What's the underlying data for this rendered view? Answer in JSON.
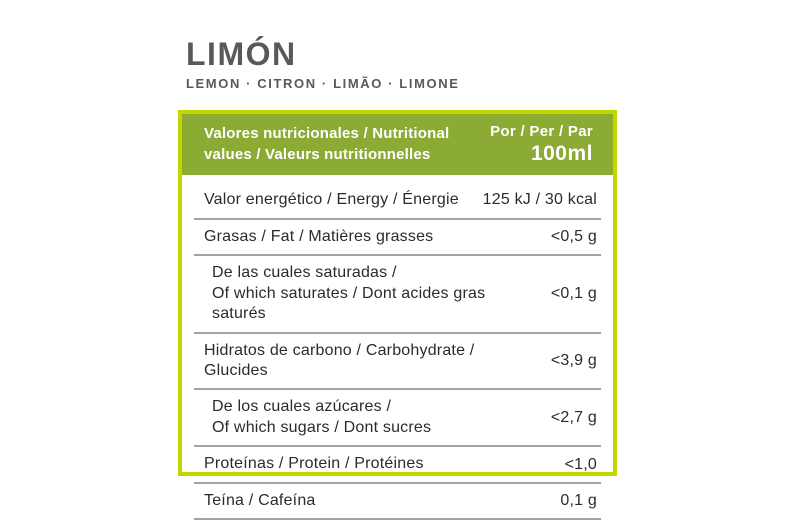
{
  "page": {
    "title": "LIMÓN",
    "subtitle": "LEMON · CITRON · LIMÃO · LIMONE"
  },
  "table": {
    "header": {
      "left_line1": "Valores nutricionales / Nutritional",
      "left_line2": "values / Valeurs nutritionnelles",
      "per_label": "Por / Per / Par",
      "per_amount": "100ml"
    },
    "rows": [
      {
        "label": "Valor energético / Energy / Énergie",
        "value": "125 kJ / 30 kcal"
      },
      {
        "label": "Grasas / Fat / Matières grasses",
        "value": "<0,5 g"
      },
      {
        "label_line1": "De las cuales saturadas /",
        "label_line2": "Of which saturates / Dont acides gras saturés",
        "value": "<0,1 g"
      },
      {
        "label": "Hidratos de carbono / Carbohydrate / Glucides",
        "value": "<3,9 g"
      },
      {
        "label_line1": "De los cuales azúcares /",
        "label_line2": "Of which sugars / Dont sucres",
        "value": "<2,7 g"
      },
      {
        "label": "Proteínas / Protein / Protéines",
        "value": "<1,0"
      },
      {
        "label": "Teína / Cafeína",
        "value": "0,1 g"
      }
    ],
    "colors": {
      "border": "#c3d600",
      "header_bg": "#8cab35",
      "header_text": "#ffffff",
      "row_text": "#2b2b2b",
      "divider": "#a3a3a3",
      "title_text": "#58595b"
    }
  }
}
